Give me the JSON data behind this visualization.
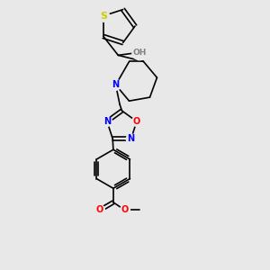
{
  "background_color": "#e8e8e8",
  "figure_size": [
    3.0,
    3.0
  ],
  "dpi": 100,
  "bond_color": "#000000",
  "bond_width": 1.2,
  "atom_colors": {
    "S": "#cccc00",
    "O": "#ff0000",
    "N": "#0000ff",
    "C": "#000000",
    "H": "#808080"
  },
  "font_size_atoms": 7,
  "xlim": [
    0,
    10
  ],
  "ylim": [
    0,
    10
  ]
}
